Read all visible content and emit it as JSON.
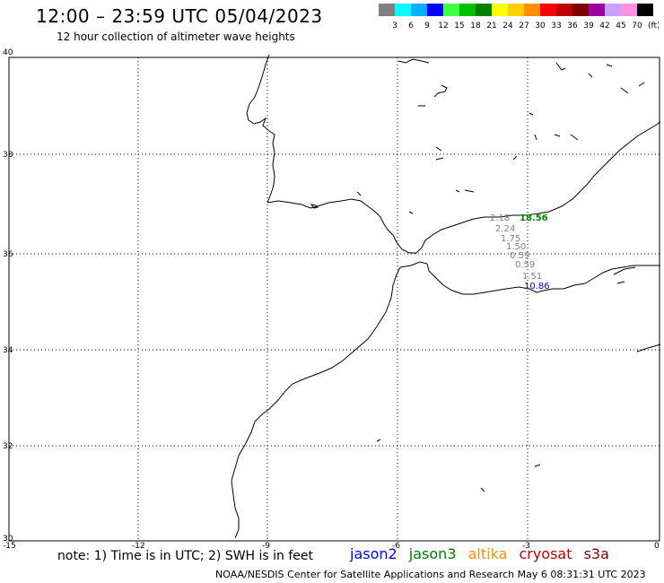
{
  "header": {
    "title": "12:00 – 23:59 UTC 05/04/2023",
    "subtitle": "12 hour collection of altimeter wave heights"
  },
  "color_scale": {
    "swatches": [
      "#808080",
      "#00ffff",
      "#00b0ff",
      "#0000ff",
      "#40ff40",
      "#00c000",
      "#008000",
      "#ffff00",
      "#ffd000",
      "#ff9000",
      "#ff0000",
      "#c00000",
      "#800000",
      "#a000a0",
      "#c8a0ff",
      "#ff90e0",
      "#000000"
    ],
    "labels": [
      "3",
      "6",
      "9",
      "12",
      "15",
      "18",
      "21",
      "24",
      "27",
      "30",
      "33",
      "36",
      "39",
      "42",
      "45",
      "70"
    ],
    "unit": "(ft)"
  },
  "axes": {
    "x_ticks": [
      "-15",
      "-12",
      "-9",
      "-6",
      "-3",
      "0"
    ],
    "y_ticks": [
      "40",
      "38",
      "36",
      "34",
      "32",
      "30"
    ]
  },
  "observations": [
    {
      "text": "2.18",
      "color": "#808080"
    },
    {
      "text": "18.56",
      "color": "#008000"
    },
    {
      "text": "2.24",
      "color": "#808080"
    },
    {
      "text": "1.75",
      "color": "#808080"
    },
    {
      "text": "1.50",
      "color": "#808080"
    },
    {
      "text": "0.59",
      "color": "#808080"
    },
    {
      "text": "0.59",
      "color": "#808080"
    },
    {
      "text": "1.51",
      "color": "#808080"
    },
    {
      "text": "10.86",
      "color": "#0000ff"
    }
  ],
  "footer": {
    "note": "note:  1) Time is in UTC;  2) SWH is in feet",
    "legend": [
      {
        "label": "jason2",
        "color": "#0000ff"
      },
      {
        "label": "jason3",
        "color": "#008000"
      },
      {
        "label": "altika",
        "color": "#ff9000"
      },
      {
        "label": "cryosat",
        "color": "#c00000"
      },
      {
        "label": "s3a",
        "color": "#800000"
      }
    ],
    "credit": "NOAA/NESDIS Center for Satellite Applications and Research     May  6 08:31:31 UTC 2023"
  }
}
